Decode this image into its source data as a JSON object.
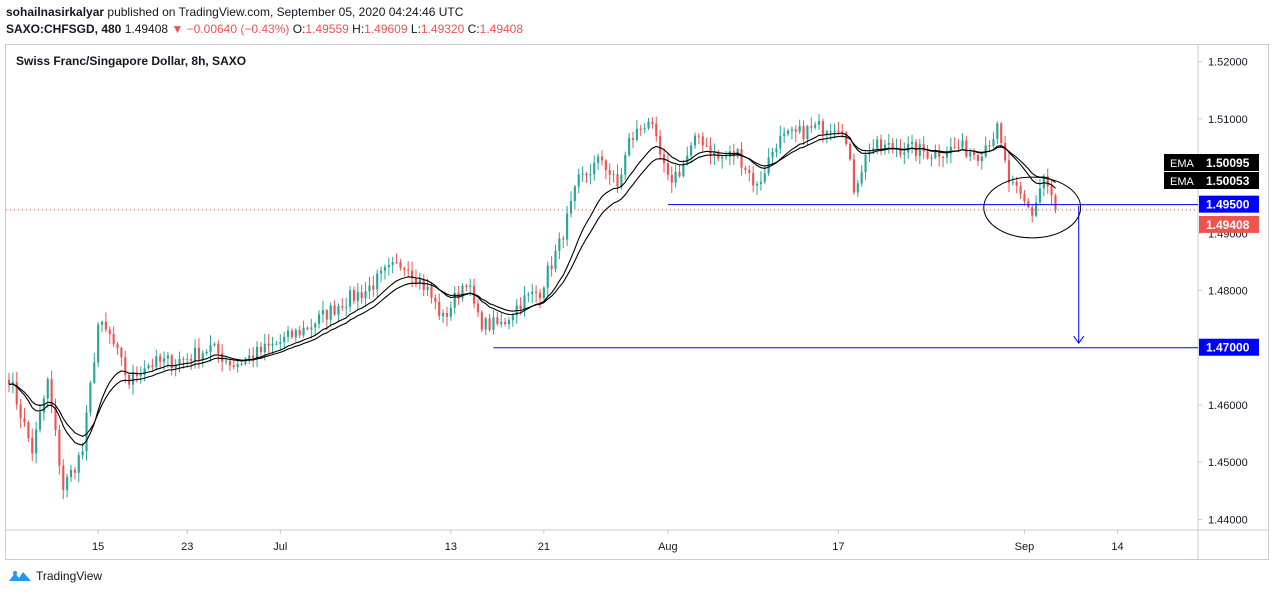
{
  "header": {
    "author": "sohailnasirkalyar",
    "published_text": "published on TradingView.com, September 05, 2020 04:24:46 UTC",
    "symbol": "SAXO:CHFSGD, 480",
    "last": "1.49408",
    "change": "▼ −0.00640 (−0.43%)",
    "o_label": "O:",
    "o_value": "1.49559",
    "h_label": "H:",
    "h_value": "1.49609",
    "l_label": "L:",
    "l_value": "1.49320",
    "c_label": "C:",
    "c_value": "1.49408"
  },
  "footer": {
    "brand": "TradingView"
  },
  "colors": {
    "up": "#26a69a",
    "down": "#ef5350",
    "ema": "#000000",
    "hline": "#0000ff",
    "badge_blue": "#0000ff"
  },
  "chart_data": {
    "type": "candlestick",
    "instrument_title": "Swiss Franc/Singapore Dollar, 8h, SAXO",
    "y_ticks": [
      "1.52000",
      "1.51000",
      "1.50000",
      "1.49000",
      "1.48000",
      "1.47000",
      "1.46000",
      "1.45000",
      "1.44000"
    ],
    "ylim": [
      1.4385,
      1.5215
    ],
    "x_ticks": [
      {
        "label": "15",
        "index": 23
      },
      {
        "label": "23",
        "index": 46
      },
      {
        "label": "Jul",
        "index": 70
      },
      {
        "label": "13",
        "index": 114
      },
      {
        "label": "21",
        "index": 138
      },
      {
        "label": "Aug",
        "index": 170
      },
      {
        "label": "17",
        "index": 214
      },
      {
        "label": "Sep",
        "index": 262
      },
      {
        "label": "14",
        "index": 286
      }
    ],
    "x_range": [
      0,
      306
    ],
    "horizontal_lines": [
      {
        "value": 1.495,
        "label": "1.49500",
        "from_index": 170
      },
      {
        "value": 1.47,
        "label": "1.47000",
        "from_index": 125
      }
    ],
    "current_price": {
      "value": 1.49408,
      "label": "1.49408"
    },
    "indicators": [
      {
        "name": "EMA",
        "last": "1.50095"
      },
      {
        "name": "EMA",
        "last": "1.50053"
      }
    ],
    "annotations": {
      "arrow": {
        "index": 276,
        "from": 1.4948,
        "to": 1.4708
      },
      "ellipse": {
        "center_index": 264,
        "center_value": 1.4945,
        "rx_index": 12.5,
        "ry_value": 0.0053
      }
    },
    "anchors": [
      [
        0,
        1.465
      ],
      [
        6,
        1.452
      ],
      [
        10,
        1.464
      ],
      [
        14,
        1.4455
      ],
      [
        19,
        1.452
      ],
      [
        23,
        1.474
      ],
      [
        26,
        1.472
      ],
      [
        31,
        1.464
      ],
      [
        35,
        1.467
      ],
      [
        45,
        1.468
      ],
      [
        52,
        1.47
      ],
      [
        58,
        1.467
      ],
      [
        64,
        1.469
      ],
      [
        70,
        1.471
      ],
      [
        78,
        1.474
      ],
      [
        86,
        1.478
      ],
      [
        92,
        1.48
      ],
      [
        97,
        1.483
      ],
      [
        102,
        1.485
      ],
      [
        108,
        1.48
      ],
      [
        112,
        1.475
      ],
      [
        118,
        1.482
      ],
      [
        121,
        1.475
      ],
      [
        123,
        1.474
      ],
      [
        127,
        1.474
      ],
      [
        132,
        1.478
      ],
      [
        137,
        1.48
      ],
      [
        142,
        1.488
      ],
      [
        147,
        1.499
      ],
      [
        153,
        1.503
      ],
      [
        157,
        1.498
      ],
      [
        160,
        1.506
      ],
      [
        165,
        1.51
      ],
      [
        170,
        1.499
      ],
      [
        173,
        1.501
      ],
      [
        178,
        1.507
      ],
      [
        183,
        1.503
      ],
      [
        188,
        1.504
      ],
      [
        193,
        1.498
      ],
      [
        198,
        1.506
      ],
      [
        206,
        1.508
      ],
      [
        212,
        1.509
      ],
      [
        215,
        1.509
      ],
      [
        218,
        1.498
      ],
      [
        222,
        1.505
      ],
      [
        230,
        1.505
      ],
      [
        238,
        1.504
      ],
      [
        245,
        1.505
      ],
      [
        250,
        1.504
      ],
      [
        255,
        1.508
      ],
      [
        258,
        1.499
      ],
      [
        261,
        1.496
      ],
      [
        264,
        1.4935
      ],
      [
        267,
        1.5
      ],
      [
        269,
        1.496
      ],
      [
        270,
        1.4941
      ]
    ],
    "last_index": 270
  }
}
